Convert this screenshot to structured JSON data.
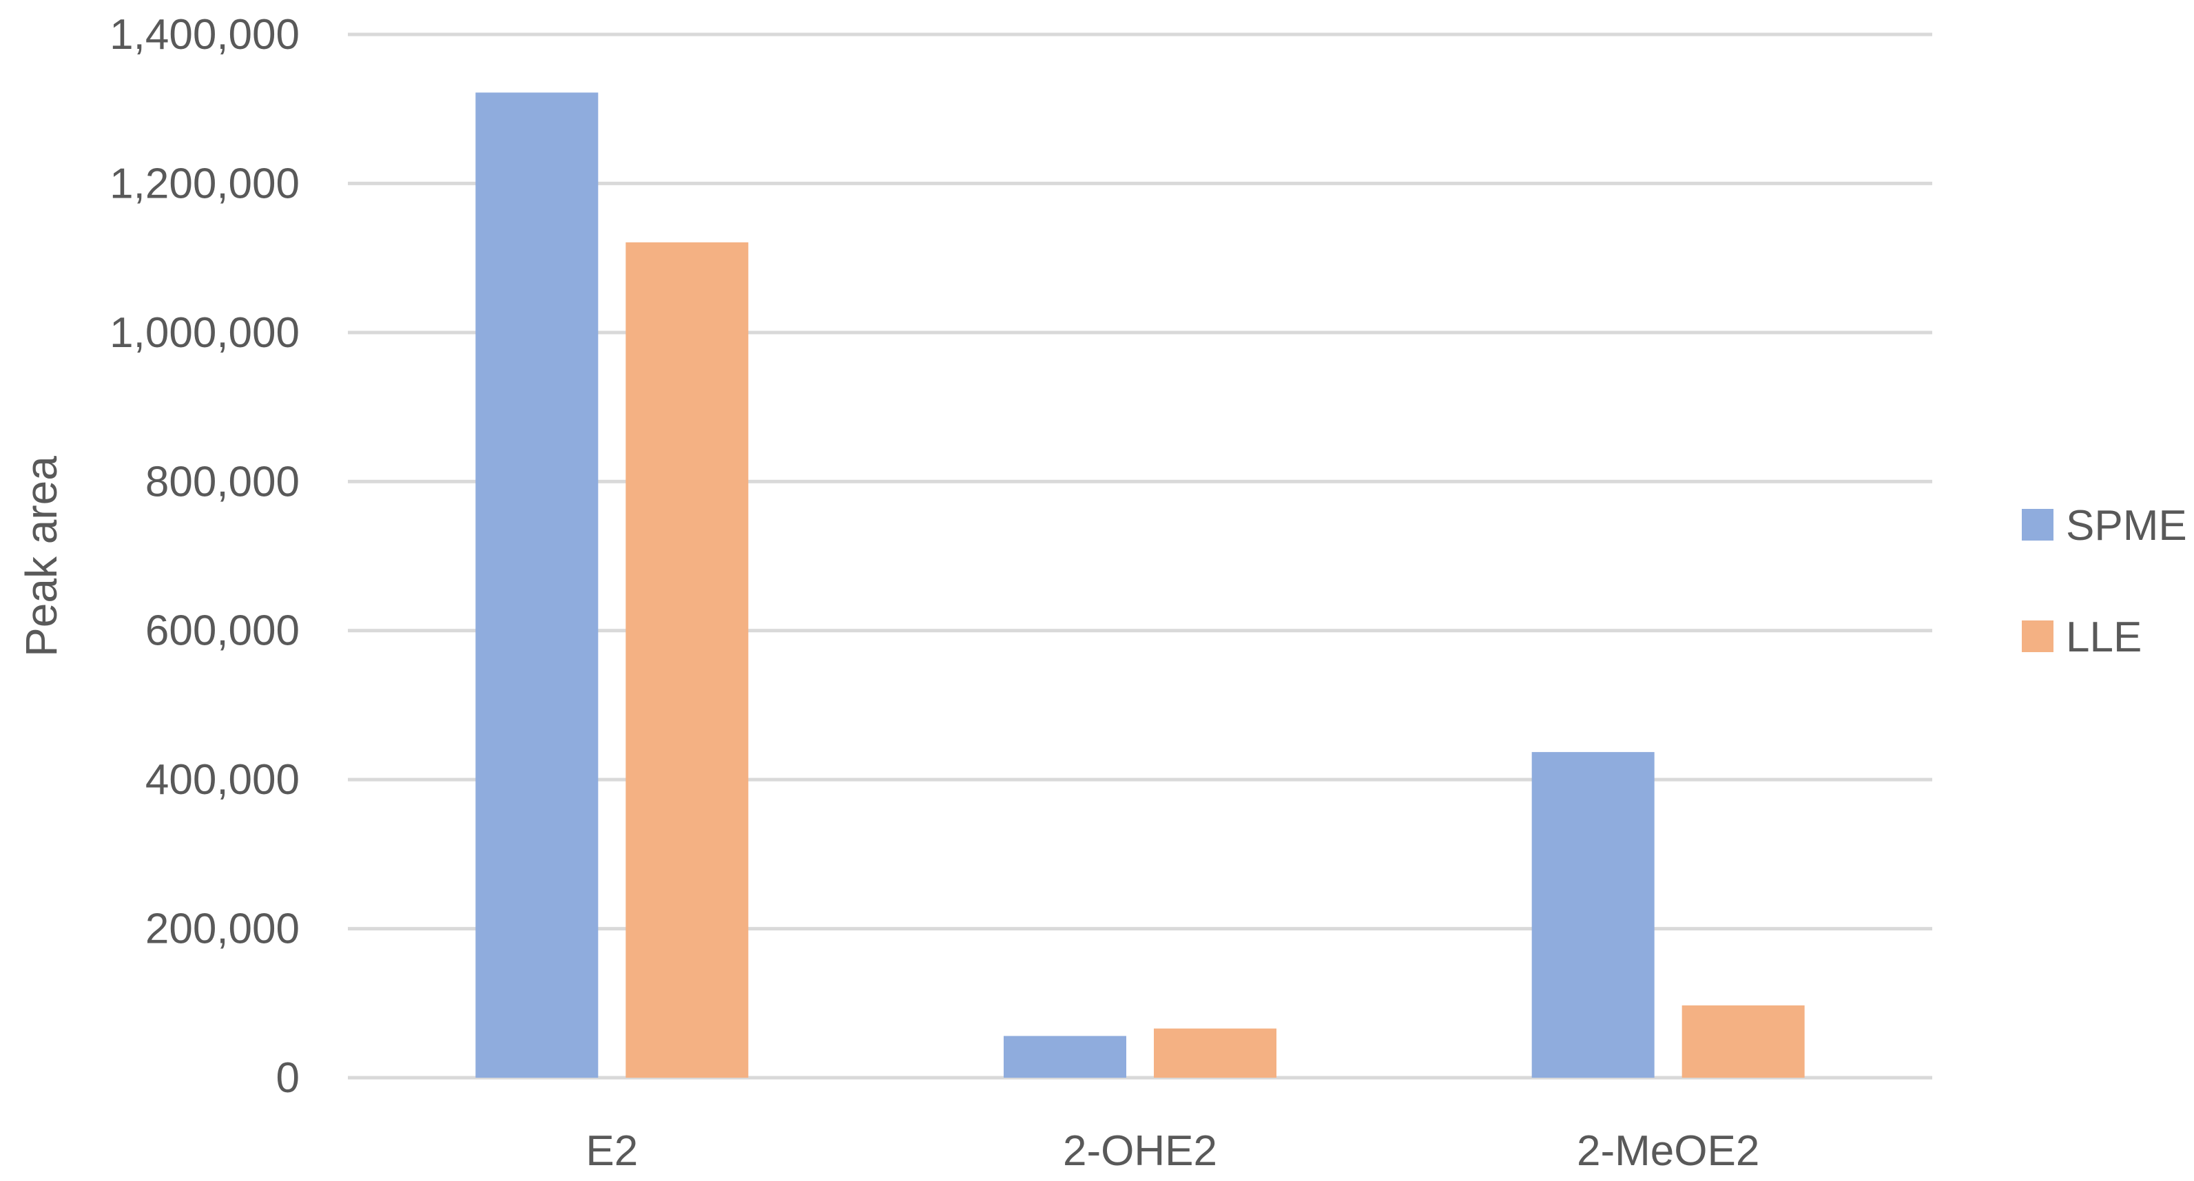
{
  "chart_data": {
    "type": "bar",
    "categories": [
      "E2",
      "2-OHE2",
      "2-MeOE2"
    ],
    "series": [
      {
        "name": "SPME",
        "values": [
          1322000,
          56000,
          437000
        ],
        "color": "#8FACDD"
      },
      {
        "name": "LLE",
        "values": [
          1121000,
          66000,
          97000
        ],
        "color": "#F4B183"
      }
    ],
    "ylabel": "Peak area",
    "xlabel": "",
    "ylim": [
      0,
      1400000
    ],
    "yticks": [
      0,
      200000,
      400000,
      600000,
      800000,
      1000000,
      1200000,
      1400000
    ],
    "ytick_labels": [
      "0",
      "200,000",
      "400,000",
      "600,000",
      "800,000",
      "1,000,000",
      "1,200,000",
      "1,400,000"
    ],
    "grid": true,
    "legend_position": "right",
    "gridline_color": "#D9D9D9"
  }
}
